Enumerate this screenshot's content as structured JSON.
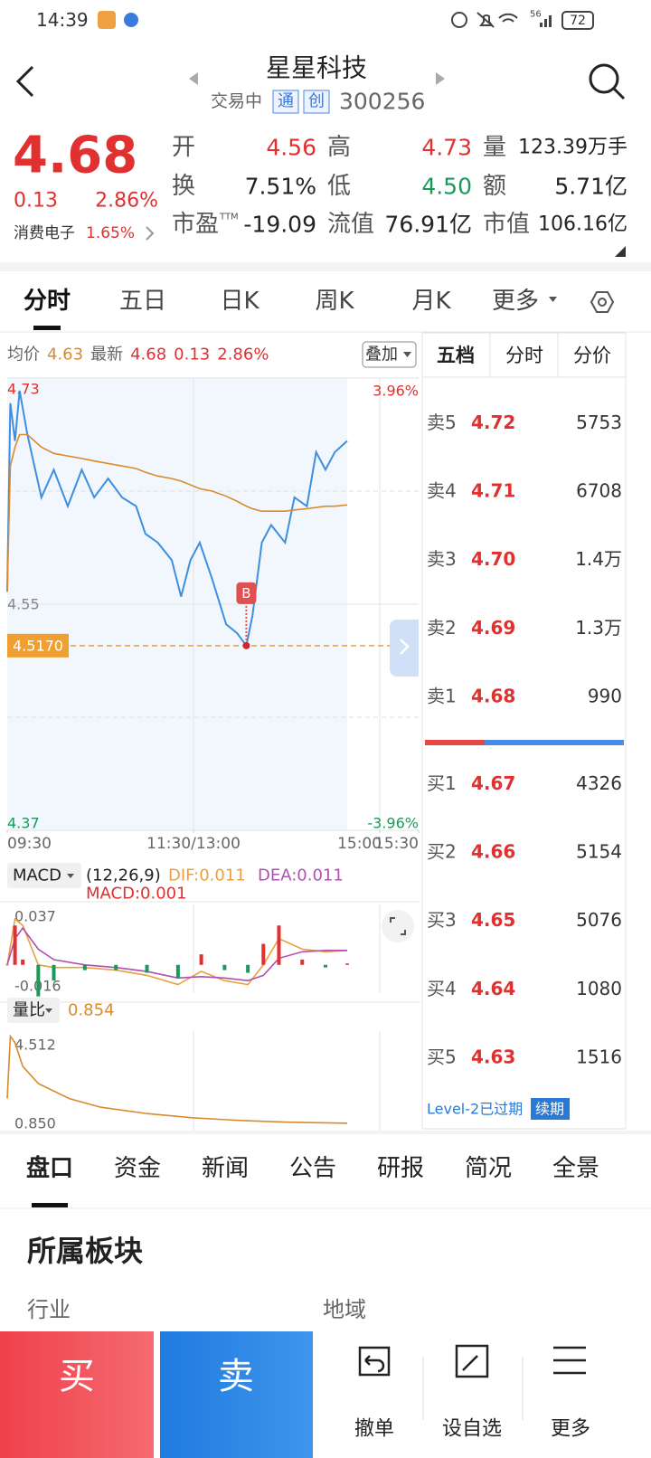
{
  "status": {
    "time": "14:39",
    "network": "56",
    "battery": "72"
  },
  "header": {
    "title": "星星科技",
    "state": "交易中",
    "tags": [
      "通",
      "创"
    ],
    "code": "300256"
  },
  "quote": {
    "price": "4.68",
    "change": "0.13",
    "change_pct": "2.86%",
    "sector": "消费电子",
    "sector_pct": "1.65%",
    "stats": [
      {
        "label": "开",
        "value": "4.56",
        "color": "#e03030"
      },
      {
        "label": "高",
        "value": "4.73",
        "color": "#e03030"
      },
      {
        "label": "量",
        "value": "123.39万手",
        "color": "#222222"
      },
      {
        "label": "换",
        "value": "7.51%",
        "color": "#222222"
      },
      {
        "label": "低",
        "value": "4.50",
        "color": "#1a9a5a"
      },
      {
        "label": "额",
        "value": "5.71亿",
        "color": "#222222"
      },
      {
        "label": "市盈",
        "sup": "TTM",
        "value": "-19.09",
        "color": "#222222"
      },
      {
        "label": "流值",
        "value": "76.91亿",
        "color": "#222222"
      },
      {
        "label": "市值",
        "value": "106.16亿",
        "color": "#222222"
      }
    ]
  },
  "tabs": [
    "分时",
    "五日",
    "日K",
    "周K",
    "月K",
    "更多"
  ],
  "chart_data": [
    {
      "type": "line",
      "info": [
        {
          "text": "均价",
          "color": "#666666"
        },
        {
          "text": "4.63",
          "color": "#d98a2e"
        },
        {
          "text": "最新",
          "color": "#666666"
        },
        {
          "text": "4.68",
          "color": "#e03030"
        },
        {
          "text": "0.13",
          "color": "#e03030"
        },
        {
          "text": "2.86%",
          "color": "#e03030"
        }
      ],
      "overlay": "叠加",
      "x": [
        0,
        2,
        5,
        8,
        13,
        22,
        30,
        39,
        48,
        56,
        65,
        74,
        83,
        89,
        97,
        106,
        112,
        118,
        124,
        132,
        141,
        148,
        154,
        158,
        164,
        170,
        179,
        185,
        193,
        199,
        205,
        211,
        219
      ],
      "xlim": [
        0,
        265
      ],
      "xticks": [
        {
          "value": 0,
          "label": "09:30"
        },
        {
          "value": 120,
          "label": "11:30/13:00"
        },
        {
          "value": 240,
          "label": "15:00"
        },
        {
          "value": 265,
          "label": "15:30"
        }
      ],
      "ylim": [
        4.37,
        4.73
      ],
      "yticks": [
        4.37,
        4.55,
        4.73
      ],
      "y2lim": [
        -3.96,
        3.96
      ],
      "y2ticks": [
        {
          "value": -3.96,
          "label": "-3.96%"
        },
        {
          "value": 3.96,
          "label": "3.96%"
        }
      ],
      "series": [
        {
          "color": "#3d8fe0",
          "values": [
            4.56,
            4.71,
            4.68,
            4.72,
            4.685,
            4.635,
            4.657,
            4.628,
            4.657,
            4.635,
            4.65,
            4.635,
            4.628,
            4.606,
            4.599,
            4.585,
            4.556,
            4.585,
            4.599,
            4.57,
            4.534,
            4.527,
            4.517,
            4.541,
            4.599,
            4.613,
            4.599,
            4.635,
            4.628,
            4.671,
            4.657,
            4.671,
            4.68
          ]
        },
        {
          "color": "#d98a2e",
          "values": [
            4.56,
            4.66,
            4.675,
            4.685,
            4.685,
            4.675,
            4.67,
            4.668,
            4.666,
            4.664,
            4.662,
            4.66,
            4.658,
            4.655,
            4.652,
            4.65,
            4.648,
            4.645,
            4.642,
            4.64,
            4.636,
            4.632,
            4.628,
            4.626,
            4.624,
            4.624,
            4.624,
            4.625,
            4.626,
            4.627,
            4.628,
            4.628,
            4.629
          ]
        }
      ],
      "annotations": {
        "price_line": {
          "value": 4.517,
          "label": "4.5170",
          "color": "#f0a030"
        },
        "buy_marker": {
          "label": "B",
          "x": 154,
          "y": 4.517,
          "color": "#e05050"
        }
      }
    },
    {
      "type": "macd",
      "selector": "MACD",
      "params": "(12,26,9)",
      "x": [
        0,
        5,
        10,
        20,
        30,
        50,
        70,
        90,
        110,
        125,
        140,
        155,
        165,
        175,
        190,
        205,
        219
      ],
      "xlim": [
        0,
        265
      ],
      "ylim": [
        -0.0215,
        0.046
      ],
      "yticks": [
        -0.016,
        0.037
      ],
      "series": [
        {
          "name": "DIF:0.011",
          "color": "#e8a040",
          "values": [
            0,
            0.035,
            0.03,
            0.0,
            -0.002,
            -0.002,
            -0.004,
            -0.008,
            -0.015,
            -0.005,
            -0.012,
            -0.015,
            0.0,
            0.02,
            0.012,
            0.01,
            0.011
          ]
        },
        {
          "name": "DEA:0.011",
          "color": "#b04fb0",
          "values": [
            0,
            0.02,
            0.028,
            0.012,
            0.004,
            0.0,
            -0.002,
            -0.005,
            -0.01,
            -0.009,
            -0.01,
            -0.012,
            -0.008,
            0.005,
            0.01,
            0.011,
            0.011
          ]
        },
        {
          "name": "MACD:0.001",
          "color": "#e03030",
          "negative_color": "#1a9a5a",
          "style": "bar",
          "values": [
            0,
            0.03,
            0.004,
            -0.024,
            -0.012,
            -0.004,
            -0.004,
            -0.006,
            -0.01,
            0.008,
            -0.004,
            -0.006,
            0.016,
            0.03,
            0.004,
            -0.002,
            0.001
          ]
        }
      ]
    },
    {
      "type": "line",
      "selector": "量比",
      "value": "0.854",
      "value_color": "#d98a2e",
      "x": [
        0,
        2,
        5,
        10,
        20,
        40,
        60,
        90,
        120,
        150,
        180,
        219
      ],
      "xlim": [
        0,
        265
      ],
      "ylim": [
        0.51,
        5.14
      ],
      "yticks": [
        {
          "value": 0.85,
          "label": "0.850"
        },
        4.512
      ],
      "series": [
        {
          "color": "#d98a2e",
          "values": [
            2.0,
            4.9,
            4.6,
            3.5,
            2.7,
            2.0,
            1.6,
            1.3,
            1.1,
            0.98,
            0.9,
            0.854
          ]
        }
      ]
    }
  ],
  "order_book": {
    "tabs": [
      "五档",
      "分时",
      "分价"
    ],
    "asks": [
      {
        "label": "卖5",
        "price": "4.72",
        "volume": "5753"
      },
      {
        "label": "卖4",
        "price": "4.71",
        "volume": "6708"
      },
      {
        "label": "卖3",
        "price": "4.70",
        "volume": "1.4万"
      },
      {
        "label": "卖2",
        "price": "4.69",
        "volume": "1.3万"
      },
      {
        "label": "卖1",
        "price": "4.68",
        "volume": "990"
      }
    ],
    "bids": [
      {
        "label": "买1",
        "price": "4.67",
        "volume": "4326"
      },
      {
        "label": "买2",
        "price": "4.66",
        "volume": "5154"
      },
      {
        "label": "买3",
        "price": "4.65",
        "volume": "5076"
      },
      {
        "label": "买4",
        "price": "4.64",
        "volume": "1080"
      },
      {
        "label": "买5",
        "price": "4.63",
        "volume": "1516"
      }
    ],
    "level2": "Level-2已过期",
    "renew": "续期"
  },
  "detail_tabs": [
    "盘口",
    "资金",
    "新闻",
    "公告",
    "研报",
    "简况",
    "全景"
  ],
  "section": {
    "title": "所属板块",
    "fields": [
      "行业",
      "地域"
    ]
  },
  "actions": {
    "buy": "买",
    "sell": "卖",
    "tools": [
      "撤单",
      "设自选",
      "更多"
    ]
  }
}
